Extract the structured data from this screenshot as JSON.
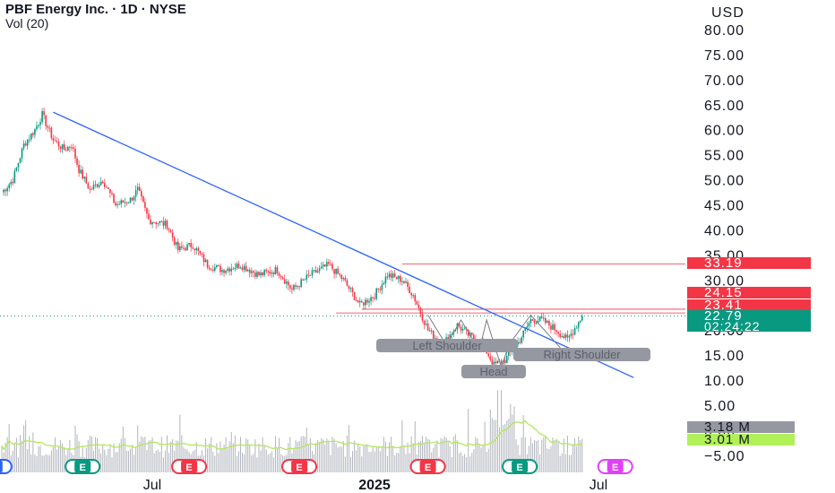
{
  "header": {
    "title": "PBF Energy Inc. · 1D · NYSE",
    "volume_label": "Vol (20)",
    "currency": "USD"
  },
  "chart_data": {
    "type": "candlestick",
    "y_axis": {
      "ticks": [
        "80.00",
        "75.00",
        "70.00",
        "65.00",
        "60.00",
        "55.00",
        "50.00",
        "45.00",
        "40.00",
        "35.00",
        "30.00",
        "25.00",
        "20.00",
        "15.00",
        "10.00",
        "5.00",
        "0.00",
        "−5.00"
      ],
      "ylim": [
        -5,
        82
      ]
    },
    "x_axis": {
      "ticks": [
        "Jul",
        "2025",
        "Jul"
      ]
    },
    "price_series": {
      "start_close": 47.5,
      "anchors": [
        {
          "t": 0,
          "close": 47.5
        },
        {
          "t": 6,
          "close": 50
        },
        {
          "t": 12,
          "close": 57
        },
        {
          "t": 18,
          "close": 60
        },
        {
          "t": 22,
          "close": 63
        },
        {
          "t": 28,
          "close": 58
        },
        {
          "t": 34,
          "close": 56
        },
        {
          "t": 38,
          "close": 57
        },
        {
          "t": 42,
          "close": 52
        },
        {
          "t": 48,
          "close": 48
        },
        {
          "t": 55,
          "close": 50
        },
        {
          "t": 62,
          "close": 45
        },
        {
          "t": 70,
          "close": 46
        },
        {
          "t": 74,
          "close": 48
        },
        {
          "t": 80,
          "close": 42
        },
        {
          "t": 90,
          "close": 41
        },
        {
          "t": 96,
          "close": 36
        },
        {
          "t": 104,
          "close": 37
        },
        {
          "t": 112,
          "close": 33
        },
        {
          "t": 120,
          "close": 32
        },
        {
          "t": 130,
          "close": 33
        },
        {
          "t": 140,
          "close": 31
        },
        {
          "t": 150,
          "close": 32
        },
        {
          "t": 158,
          "close": 28
        },
        {
          "t": 168,
          "close": 31
        },
        {
          "t": 178,
          "close": 33
        },
        {
          "t": 186,
          "close": 30
        },
        {
          "t": 195,
          "close": 25
        },
        {
          "t": 203,
          "close": 27
        },
        {
          "t": 210,
          "close": 31
        },
        {
          "t": 218,
          "close": 30
        },
        {
          "t": 224,
          "close": 27
        },
        {
          "t": 232,
          "close": 20
        },
        {
          "t": 240,
          "close": 17
        },
        {
          "t": 248,
          "close": 21
        },
        {
          "t": 254,
          "close": 19
        },
        {
          "t": 262,
          "close": 17
        },
        {
          "t": 268,
          "close": 13
        },
        {
          "t": 274,
          "close": 14
        },
        {
          "t": 282,
          "close": 18
        },
        {
          "t": 288,
          "close": 22
        },
        {
          "t": 294,
          "close": 22
        },
        {
          "t": 302,
          "close": 20
        },
        {
          "t": 308,
          "close": 18
        },
        {
          "t": 316,
          "close": 22.79
        }
      ],
      "total_bars": 316
    },
    "volume": {
      "scale_max_millions": 12,
      "ma_label": "3.01 M",
      "last_label": "3.18 M"
    },
    "price_labels": [
      {
        "value": 33.19,
        "text": "33.19",
        "color": "#f23645"
      },
      {
        "value": 24.15,
        "text": "24.15",
        "color": "#f23645"
      },
      {
        "value": 23.41,
        "text": "23.41",
        "color": "#f23645"
      },
      {
        "value": 22.79,
        "text": "22.79",
        "color": "#089981",
        "countdown": "02:24:22"
      }
    ],
    "horizontal_lines": [
      {
        "value": 33.19,
        "from_t": 218
      },
      {
        "value": 23.41,
        "from_t": 182
      },
      {
        "value": 24.15,
        "from_t": 196
      }
    ],
    "trendline": {
      "from": {
        "t": 28,
        "value": 63.5
      },
      "to": {
        "t": 344,
        "value": 10.5
      },
      "color": "#2962ff"
    },
    "pattern": {
      "labels": [
        "Left Shoulder",
        "Head",
        "Right Shoulder"
      ],
      "points": [
        {
          "t": 232,
          "value": 23
        },
        {
          "t": 242,
          "value": 17
        },
        {
          "t": 250,
          "value": 22
        },
        {
          "t": 260,
          "value": 16
        },
        {
          "t": 264,
          "value": 22
        },
        {
          "t": 272,
          "value": 12.5
        },
        {
          "t": 276,
          "value": 17
        },
        {
          "t": 288,
          "value": 23
        },
        {
          "t": 304,
          "value": 16.5
        }
      ]
    },
    "events": [
      {
        "t": -4,
        "letter": "D",
        "color": "#2962ff",
        "partial": true
      },
      {
        "t": 44,
        "letter": "E",
        "color": "#089981"
      },
      {
        "t": 102,
        "letter": "E",
        "color": "#f23645"
      },
      {
        "t": 162,
        "letter": "E",
        "color": "#f23645"
      },
      {
        "t": 232,
        "letter": "E",
        "color": "#f23645"
      },
      {
        "t": 282,
        "letter": "E",
        "color": "#089981"
      },
      {
        "t": 334,
        "letter": "E",
        "color": "#e040fb"
      }
    ]
  },
  "colors": {
    "up": "#089981",
    "down": "#f23645",
    "volume_bar": "#b2b5be",
    "volume_ma": "#b4e85a",
    "volume_label_gray": "#9598a1",
    "volume_label_green": "#b2f05a",
    "pattern_box": "#9598a1"
  }
}
